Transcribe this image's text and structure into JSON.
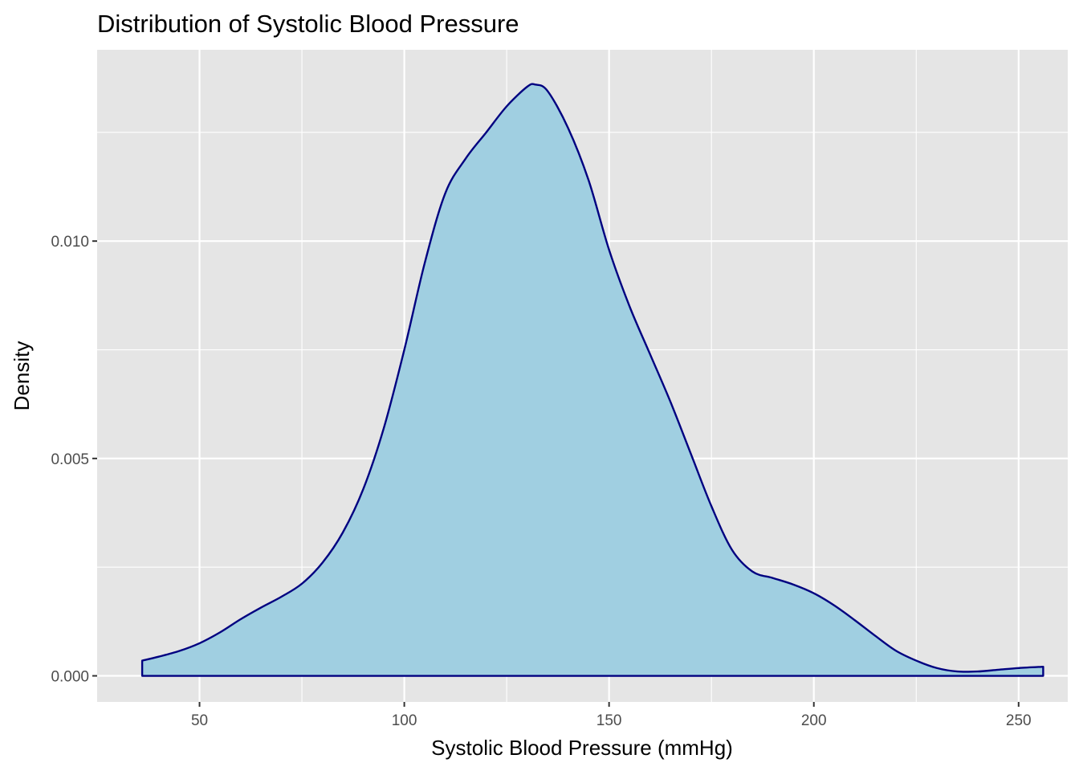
{
  "chart_data": {
    "type": "area",
    "title": "Distribution of Systolic Blood Pressure",
    "xlabel": "Systolic Blood Pressure (mmHg)",
    "ylabel": "Density",
    "xlim": [
      25,
      262
    ],
    "ylim": [
      -0.0006,
      0.0144
    ],
    "x_ticks": [
      50,
      100,
      150,
      200,
      250
    ],
    "x_tick_labels": [
      "50",
      "100",
      "150",
      "200",
      "250"
    ],
    "x_minor_ticks": [
      75,
      125,
      175,
      225
    ],
    "y_ticks": [
      0.0,
      0.005,
      0.01
    ],
    "y_tick_labels": [
      "0.000",
      "0.005",
      "0.010"
    ],
    "y_minor_ticks": [
      0.0025,
      0.0075,
      0.0125
    ],
    "grid": true,
    "legend": "none",
    "colors": {
      "fill": "#a0cfe1",
      "line": "#000080",
      "panel": "#e5e5e5",
      "grid": "#ffffff"
    },
    "x": [
      36,
      40,
      45,
      50,
      55,
      60,
      65,
      70,
      75,
      80,
      85,
      90,
      95,
      100,
      105,
      110,
      115,
      120,
      125,
      130,
      132,
      135,
      140,
      145,
      150,
      155,
      160,
      165,
      170,
      175,
      180,
      185,
      190,
      195,
      200,
      205,
      210,
      215,
      220,
      225,
      230,
      235,
      240,
      245,
      250,
      256
    ],
    "y": [
      0.00035,
      0.00044,
      0.00057,
      0.00075,
      0.001,
      0.0013,
      0.00157,
      0.00182,
      0.00212,
      0.0026,
      0.0033,
      0.0043,
      0.0057,
      0.0075,
      0.0095,
      0.0111,
      0.0119,
      0.0125,
      0.0131,
      0.01355,
      0.0136,
      0.01345,
      0.0126,
      0.0114,
      0.0098,
      0.0085,
      0.0074,
      0.0063,
      0.0051,
      0.0039,
      0.0029,
      0.0024,
      0.00225,
      0.0021,
      0.0019,
      0.00162,
      0.00128,
      0.00092,
      0.00058,
      0.00035,
      0.00018,
      0.0001,
      0.0001,
      0.00014,
      0.00018,
      0.00021
    ]
  }
}
